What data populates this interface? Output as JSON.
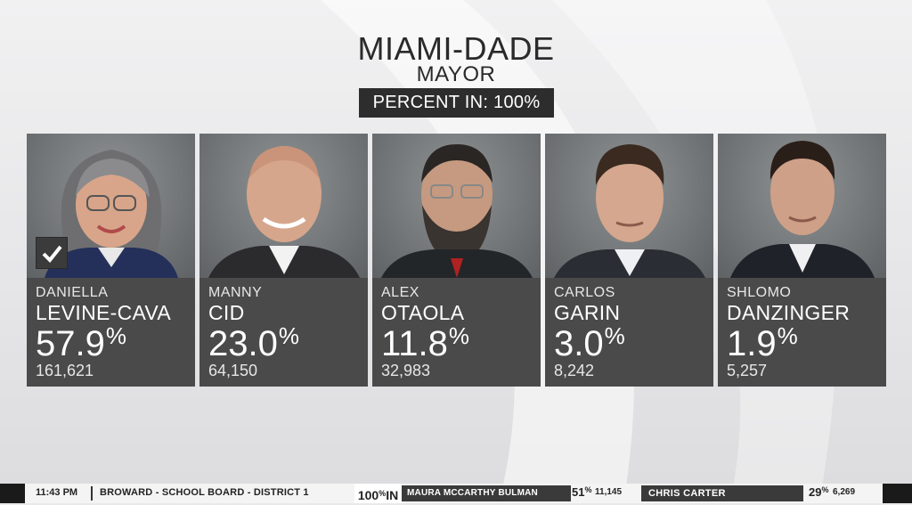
{
  "header": {
    "title": "MIAMI-DADE",
    "subtitle": "MAYOR",
    "percent_in": "PERCENT IN: 100%"
  },
  "candidates": [
    {
      "first": "DANIELLA",
      "last": "LEVINE-CAVA",
      "pct": "57.9",
      "votes": "161,621",
      "winner": true,
      "photo": "portrait-woman"
    },
    {
      "first": "MANNY",
      "last": "CID",
      "pct": "23.0",
      "votes": "64,150",
      "winner": false,
      "photo": "portrait-man-bald"
    },
    {
      "first": "ALEX",
      "last": "OTAOLA",
      "pct": "11.8",
      "votes": "32,983",
      "winner": false,
      "photo": "portrait-man-beard"
    },
    {
      "first": "CARLOS",
      "last": "GARIN",
      "pct": "3.0",
      "votes": "8,242",
      "winner": false,
      "photo": "portrait-man"
    },
    {
      "first": "SHLOMO",
      "last": "DANZINGER",
      "pct": "1.9",
      "votes": "5,257",
      "winner": false,
      "photo": "portrait-man"
    }
  ],
  "percent_symbol": "%",
  "ticker": {
    "time": "11:43 PM",
    "race": "BROWARD - SCHOOL BOARD - DISTRICT 1",
    "pct_in_num": "100",
    "pct_in_sym": "%",
    "pct_in_label": "IN",
    "c1_name": "MAURA MCCARTHY BULMAN",
    "c1_pct": "51",
    "c1_votes": "11,145",
    "c2_name": "CHRIS CARTER",
    "c2_pct": "29",
    "c2_votes": "6,269"
  },
  "colors": {
    "card": "#4a4a4b",
    "banner": "#2d2d2d",
    "ticker_candidate": "#3a3a3a"
  }
}
